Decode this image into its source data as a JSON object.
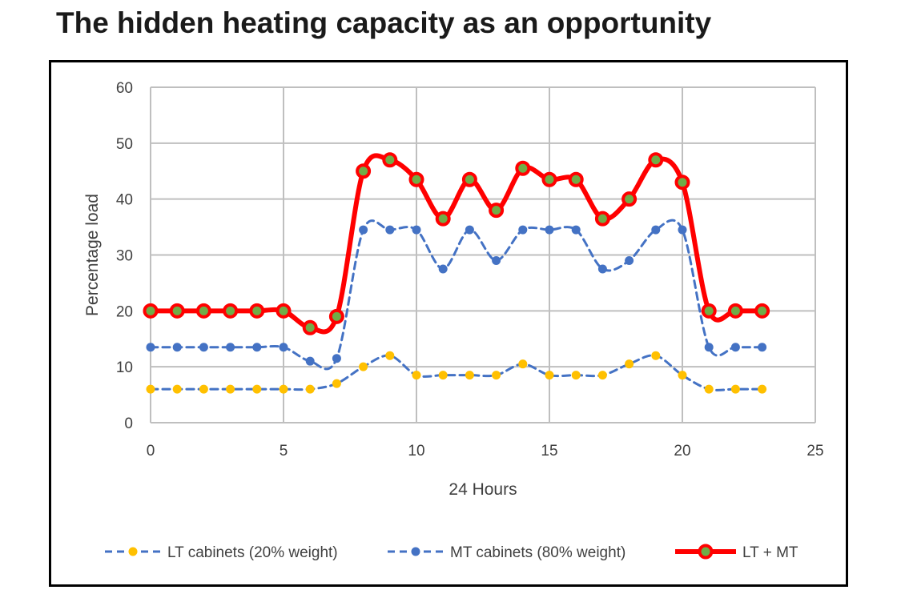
{
  "title": "The hidden heating capacity as an opportunity",
  "chart_data": {
    "type": "line",
    "xlabel": "24 Hours",
    "ylabel": "Percentage load",
    "xlim": [
      0,
      25
    ],
    "ylim": [
      0,
      60
    ],
    "xticks": [
      0,
      5,
      10,
      15,
      20,
      25
    ],
    "yticks": [
      0,
      10,
      20,
      30,
      40,
      50,
      60
    ],
    "grid": true,
    "legend_position": "bottom",
    "x": [
      0,
      1,
      2,
      3,
      4,
      5,
      6,
      7,
      8,
      9,
      10,
      11,
      12,
      13,
      14,
      15,
      16,
      17,
      18,
      19,
      20,
      21,
      22,
      23
    ],
    "series": [
      {
        "name": "LT cabinets (20% weight)",
        "style": "dashed",
        "line_color": "#4472c4",
        "marker_color": "#ffc000",
        "values": [
          6,
          6,
          6,
          6,
          6,
          6,
          6,
          7,
          10,
          12,
          8.5,
          8.5,
          8.5,
          8.5,
          10.5,
          8.5,
          8.5,
          8.5,
          10.5,
          12,
          8.5,
          6,
          6,
          6
        ]
      },
      {
        "name": "MT cabinets (80% weight)",
        "style": "dashed",
        "line_color": "#4472c4",
        "marker_color": "#4472c4",
        "values": [
          13.5,
          13.5,
          13.5,
          13.5,
          13.5,
          13.5,
          11,
          11.5,
          34.5,
          34.5,
          34.5,
          27.5,
          34.5,
          29,
          34.5,
          34.5,
          34.5,
          27.5,
          29,
          34.5,
          34.5,
          13.5,
          13.5,
          13.5
        ]
      },
      {
        "name": "LT + MT",
        "style": "solid",
        "line_color": "#ff0000",
        "marker_color": "#70ad47",
        "values": [
          20,
          20,
          20,
          20,
          20,
          20,
          17,
          19,
          45,
          47,
          43.5,
          36.5,
          43.5,
          38,
          45.5,
          43.5,
          43.5,
          36.5,
          40,
          47,
          43,
          20,
          20,
          20
        ]
      }
    ]
  }
}
